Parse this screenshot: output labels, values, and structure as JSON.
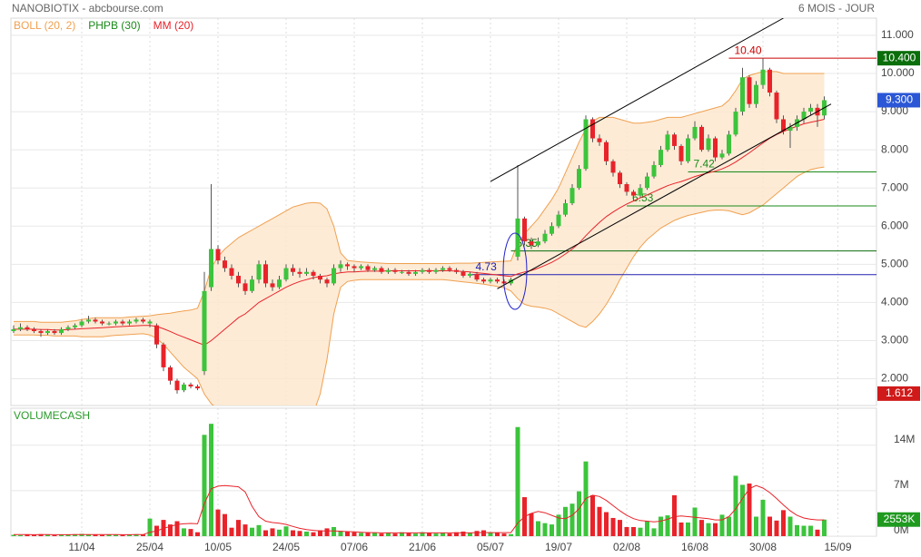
{
  "chart_data": {
    "type": "candlestick",
    "title": "NANOBIOTIX - abcbourse.com",
    "subtitle": "6 MOIS - JOUR",
    "categories": [
      null,
      null,
      null,
      null,
      null,
      null,
      null,
      null,
      null,
      null,
      "11/04",
      null,
      null,
      null,
      null,
      null,
      null,
      null,
      null,
      null,
      "25/04",
      null,
      null,
      null,
      null,
      null,
      null,
      null,
      null,
      null,
      "10/05",
      null,
      null,
      null,
      null,
      null,
      null,
      null,
      null,
      null,
      "24/05",
      null,
      null,
      null,
      null,
      null,
      null,
      null,
      null,
      null,
      "07/06",
      null,
      null,
      null,
      null,
      null,
      null,
      null,
      null,
      null,
      "21/06",
      null,
      null,
      null,
      null,
      null,
      null,
      null,
      null,
      null,
      "05/07",
      null,
      null,
      null,
      null,
      null,
      null,
      null,
      null,
      null,
      "19/07",
      null,
      null,
      null,
      null,
      null,
      null,
      null,
      null,
      null,
      "02/08",
      null,
      null,
      null,
      null,
      null,
      null,
      null,
      null,
      null,
      "16/08",
      null,
      null,
      null,
      null,
      null,
      null,
      null,
      null,
      null,
      "30/08",
      null,
      null,
      null,
      null,
      null,
      null,
      null,
      null,
      null,
      null,
      "15/09"
    ],
    "open": [
      3.25,
      3.3,
      3.35,
      3.3,
      3.25,
      3.2,
      3.25,
      3.2,
      3.3,
      3.35,
      3.4,
      3.5,
      3.55,
      3.5,
      3.45,
      3.45,
      3.5,
      3.45,
      3.5,
      3.55,
      3.45,
      3.4,
      2.9,
      2.3,
      1.95,
      1.7,
      1.85,
      1.8,
      2.2,
      4.4,
      5.4,
      5.1,
      4.9,
      4.7,
      4.5,
      4.3,
      4.6,
      5.0,
      4.5,
      4.4,
      4.6,
      4.9,
      4.8,
      4.75,
      4.8,
      4.7,
      4.6,
      4.5,
      4.9,
      5.0,
      4.95,
      4.9,
      4.95,
      4.85,
      4.9,
      4.8,
      4.85,
      4.8,
      4.8,
      4.75,
      4.8,
      4.85,
      4.8,
      4.85,
      4.9,
      4.85,
      4.8,
      4.7,
      4.75,
      4.6,
      4.55,
      4.6,
      4.55,
      4.5,
      5.2,
      6.2,
      5.6,
      5.5,
      5.6,
      5.8,
      6.0,
      6.3,
      6.6,
      7.0,
      7.5,
      8.8,
      8.3,
      8.2,
      7.7,
      7.4,
      7.1,
      6.9,
      6.8,
      7.0,
      7.3,
      7.6,
      8.0,
      8.4,
      8.1,
      7.7,
      8.3,
      8.6,
      8.0,
      8.3,
      7.8,
      7.9,
      8.4,
      9.0,
      9.9,
      9.2,
      9.7,
      10.1,
      9.5,
      8.8,
      8.5,
      8.6,
      8.8,
      9.0,
      9.1,
      8.9,
      null,
      null
    ],
    "high": [
      3.4,
      3.45,
      3.4,
      3.35,
      3.3,
      3.3,
      3.3,
      3.35,
      3.4,
      3.45,
      3.55,
      3.65,
      3.6,
      3.55,
      3.5,
      3.55,
      3.55,
      3.55,
      3.6,
      3.6,
      3.55,
      3.45,
      2.95,
      2.35,
      2.0,
      1.9,
      1.9,
      1.85,
      4.8,
      7.1,
      5.5,
      5.2,
      5.0,
      4.8,
      4.6,
      4.7,
      5.1,
      5.1,
      4.6,
      4.7,
      5.0,
      5.0,
      4.9,
      4.9,
      4.85,
      4.75,
      4.65,
      5.0,
      5.1,
      5.05,
      5.0,
      5.0,
      5.0,
      4.95,
      4.95,
      4.9,
      4.9,
      4.85,
      4.85,
      4.85,
      4.9,
      4.9,
      4.9,
      4.95,
      4.95,
      4.9,
      4.85,
      4.8,
      4.8,
      4.65,
      4.65,
      4.65,
      4.6,
      4.65,
      7.6,
      6.25,
      5.7,
      5.7,
      5.9,
      6.1,
      6.4,
      6.7,
      7.1,
      7.6,
      8.9,
      8.85,
      8.4,
      8.25,
      7.75,
      7.45,
      7.15,
      6.95,
      7.1,
      7.4,
      7.7,
      8.1,
      8.5,
      8.45,
      8.15,
      8.4,
      8.75,
      8.65,
      8.4,
      8.35,
      8.0,
      8.5,
      9.1,
      10.15,
      9.95,
      9.8,
      10.4,
      10.15,
      9.55,
      8.9,
      8.7,
      8.9,
      9.1,
      9.2,
      9.2,
      9.4,
      null,
      null
    ],
    "low": [
      3.2,
      3.25,
      3.25,
      3.2,
      3.1,
      3.15,
      3.15,
      3.15,
      3.25,
      3.3,
      3.35,
      3.45,
      3.45,
      3.4,
      3.4,
      3.4,
      3.4,
      3.4,
      3.45,
      3.45,
      3.35,
      2.8,
      2.2,
      1.85,
      1.612,
      1.65,
      1.75,
      1.7,
      2.1,
      4.3,
      5.0,
      4.8,
      4.6,
      4.4,
      4.2,
      4.25,
      4.5,
      4.4,
      4.3,
      4.35,
      4.55,
      4.7,
      4.65,
      4.7,
      4.6,
      4.5,
      4.4,
      4.45,
      4.8,
      4.85,
      4.8,
      4.85,
      4.8,
      4.8,
      4.75,
      4.75,
      4.75,
      4.75,
      4.7,
      4.7,
      4.75,
      4.75,
      4.75,
      4.8,
      4.8,
      4.75,
      4.65,
      4.65,
      4.55,
      4.5,
      4.5,
      4.5,
      4.45,
      4.45,
      5.1,
      5.5,
      5.4,
      5.45,
      5.55,
      5.75,
      5.95,
      6.25,
      6.55,
      6.95,
      7.45,
      8.2,
      8.1,
      7.6,
      7.3,
      7.0,
      6.8,
      6.65,
      6.75,
      6.95,
      7.25,
      7.55,
      7.95,
      8.0,
      7.6,
      7.65,
      8.25,
      7.95,
      7.95,
      7.7,
      7.75,
      7.85,
      8.35,
      8.9,
      9.1,
      9.1,
      9.6,
      9.4,
      8.7,
      8.4,
      8.05,
      8.5,
      8.7,
      8.9,
      8.6,
      8.8,
      null,
      null
    ],
    "close": [
      3.3,
      3.35,
      3.3,
      3.25,
      3.2,
      3.25,
      3.2,
      3.3,
      3.35,
      3.4,
      3.5,
      3.55,
      3.5,
      3.45,
      3.45,
      3.5,
      3.45,
      3.5,
      3.55,
      3.5,
      3.5,
      2.9,
      2.3,
      1.95,
      1.7,
      1.85,
      1.8,
      1.75,
      4.3,
      5.4,
      5.1,
      4.9,
      4.7,
      4.5,
      4.3,
      4.6,
      5.0,
      4.5,
      4.4,
      4.6,
      4.9,
      4.8,
      4.75,
      4.8,
      4.7,
      4.6,
      4.5,
      4.9,
      5.0,
      4.95,
      4.9,
      4.95,
      4.85,
      4.9,
      4.8,
      4.85,
      4.8,
      4.8,
      4.75,
      4.8,
      4.85,
      4.8,
      4.85,
      4.9,
      4.85,
      4.8,
      4.7,
      4.75,
      4.6,
      4.55,
      4.6,
      4.55,
      4.5,
      4.6,
      6.2,
      5.6,
      5.5,
      5.6,
      5.8,
      6.0,
      6.3,
      6.6,
      7.0,
      7.5,
      8.8,
      8.3,
      8.2,
      7.7,
      7.4,
      7.1,
      6.9,
      6.8,
      7.0,
      7.3,
      7.6,
      8.0,
      8.4,
      8.1,
      7.7,
      8.3,
      8.6,
      8.0,
      8.3,
      7.8,
      7.9,
      8.4,
      9.0,
      9.9,
      9.2,
      9.7,
      10.1,
      9.5,
      8.8,
      8.5,
      8.6,
      8.8,
      9.0,
      9.1,
      8.9,
      9.3,
      null,
      null
    ],
    "up_color": "#3cc43c",
    "down_color": "#e8232a",
    "bollinger": {
      "name": "BOLL (20, 2)",
      "color": "#f0a050",
      "fill": "#fde6cc",
      "upper": [
        3.5,
        3.5,
        3.5,
        3.5,
        3.48,
        3.48,
        3.48,
        3.48,
        3.5,
        3.52,
        3.55,
        3.58,
        3.6,
        3.6,
        3.6,
        3.6,
        3.6,
        3.62,
        3.63,
        3.64,
        3.65,
        3.68,
        3.7,
        3.72,
        3.75,
        3.78,
        3.8,
        3.85,
        4.3,
        4.9,
        5.2,
        5.4,
        5.55,
        5.7,
        5.8,
        5.9,
        6.0,
        6.1,
        6.2,
        6.3,
        6.4,
        6.5,
        6.55,
        6.6,
        6.62,
        6.6,
        6.45,
        6.0,
        5.3,
        5.1,
        5.08,
        5.06,
        5.05,
        5.04,
        5.03,
        5.02,
        5.02,
        5.02,
        5.02,
        5.02,
        5.02,
        5.02,
        5.02,
        5.02,
        5.02,
        5.03,
        5.03,
        5.03,
        5.04,
        5.05,
        5.06,
        5.07,
        5.08,
        5.09,
        5.55,
        5.8,
        6.0,
        6.2,
        6.45,
        6.7,
        7.0,
        7.4,
        7.8,
        8.2,
        8.55,
        8.75,
        8.85,
        8.85,
        8.85,
        8.8,
        8.75,
        8.7,
        8.7,
        8.72,
        8.75,
        8.8,
        8.85,
        8.85,
        8.85,
        8.9,
        8.95,
        9.0,
        9.05,
        9.1,
        9.15,
        9.3,
        9.55,
        9.85,
        9.95,
        10.0,
        10.05,
        10.05,
        10.05,
        10.0,
        10.0,
        10.0,
        10.0,
        10.0,
        10.0,
        10.0,
        null,
        null
      ],
      "lower": [
        3.15,
        3.15,
        3.15,
        3.15,
        3.14,
        3.14,
        3.12,
        3.12,
        3.12,
        3.12,
        3.1,
        3.1,
        3.1,
        3.1,
        3.12,
        3.14,
        3.15,
        3.16,
        3.17,
        3.18,
        3.15,
        3.06,
        2.9,
        2.7,
        2.5,
        2.3,
        2.15,
        2.0,
        1.6,
        1.35,
        1.2,
        1.1,
        1.0,
        0.95,
        0.9,
        0.85,
        0.8,
        0.75,
        0.7,
        0.7,
        0.7,
        0.72,
        0.8,
        0.9,
        1.1,
        1.6,
        2.5,
        3.7,
        4.4,
        4.55,
        4.58,
        4.6,
        4.6,
        4.6,
        4.6,
        4.6,
        4.6,
        4.6,
        4.6,
        4.6,
        4.6,
        4.6,
        4.6,
        4.6,
        4.58,
        4.56,
        4.54,
        4.52,
        4.5,
        4.48,
        4.45,
        4.42,
        4.38,
        4.3,
        4.1,
        3.95,
        3.9,
        3.88,
        3.85,
        3.8,
        3.7,
        3.6,
        3.5,
        3.4,
        3.35,
        3.5,
        3.7,
        3.95,
        4.25,
        4.6,
        4.9,
        5.2,
        5.45,
        5.65,
        5.8,
        5.95,
        6.05,
        6.15,
        6.22,
        6.28,
        6.32,
        6.36,
        6.4,
        6.42,
        6.42,
        6.4,
        6.35,
        6.3,
        6.35,
        6.45,
        6.55,
        6.7,
        6.85,
        7.0,
        7.15,
        7.3,
        7.4,
        7.48,
        7.52,
        7.55,
        null,
        null
      ]
    },
    "phpb": {
      "name": "PHPB (30)",
      "color": "#1a8a1a"
    },
    "moving_average": {
      "name": "MM (20)",
      "color": "#e8232a",
      "values": [
        3.3,
        3.3,
        3.3,
        3.3,
        3.29,
        3.29,
        3.28,
        3.28,
        3.29,
        3.3,
        3.31,
        3.32,
        3.33,
        3.34,
        3.35,
        3.36,
        3.37,
        3.38,
        3.39,
        3.4,
        3.4,
        3.37,
        3.31,
        3.24,
        3.16,
        3.09,
        3.02,
        2.95,
        2.88,
        3.0,
        3.15,
        3.3,
        3.45,
        3.6,
        3.7,
        3.85,
        4.0,
        4.1,
        4.2,
        4.3,
        4.4,
        4.48,
        4.55,
        4.6,
        4.65,
        4.68,
        4.7,
        4.75,
        4.78,
        4.8,
        4.8,
        4.81,
        4.82,
        4.82,
        4.82,
        4.83,
        4.83,
        4.83,
        4.83,
        4.83,
        4.83,
        4.83,
        4.83,
        4.83,
        4.83,
        4.82,
        4.81,
        4.8,
        4.78,
        4.76,
        4.74,
        4.72,
        4.7,
        4.68,
        4.75,
        4.8,
        4.84,
        4.9,
        4.97,
        5.05,
        5.15,
        5.27,
        5.4,
        5.55,
        5.75,
        5.93,
        6.1,
        6.25,
        6.37,
        6.48,
        6.58,
        6.66,
        6.74,
        6.82,
        6.9,
        6.98,
        7.06,
        7.12,
        7.17,
        7.23,
        7.3,
        7.35,
        7.4,
        7.44,
        7.5,
        7.58,
        7.68,
        7.8,
        7.92,
        8.05,
        8.18,
        8.3,
        8.4,
        8.48,
        8.55,
        8.62,
        8.68,
        8.72,
        8.76,
        8.8,
        null,
        null
      ]
    },
    "levels": [
      {
        "value": 10.4,
        "label": "10.40",
        "color": "#cc0000",
        "start": 105
      },
      {
        "value": 7.42,
        "label": "7.42",
        "color": "#1a8a1a",
        "start": 99
      },
      {
        "value": 6.53,
        "label": "6.53",
        "color": "#1a8a1a",
        "start": 90
      },
      {
        "value": 5.35,
        "label": "5.35",
        "color": "#0a6a0a",
        "start": 73
      },
      {
        "value": 4.73,
        "label": "4.73",
        "color": "#2020b0",
        "start": 67
      }
    ],
    "trendlines": [
      {
        "x": [
          70,
          113
        ],
        "y": [
          7.17,
          11.45
        ],
        "color": "#000000"
      },
      {
        "x": [
          71,
          120
        ],
        "y": [
          4.36,
          9.2
        ],
        "color": "#000000"
      }
    ],
    "price_labels": [
      {
        "value": 10.4,
        "label": "10.400",
        "color": "#0a6e0a"
      },
      {
        "value": 9.3,
        "label": "9.300",
        "color": "#2b57d6"
      },
      {
        "value": 1.612,
        "label": "1.612",
        "color": "#d01a1a"
      }
    ],
    "ylim": [
      1.3,
      11.45
    ],
    "yticks": [
      {
        "value": 2,
        "label": "2.000"
      },
      {
        "value": 3,
        "label": "3.000"
      },
      {
        "value": 4,
        "label": "4.000"
      },
      {
        "value": 5,
        "label": "5.000"
      },
      {
        "value": 6,
        "label": "6.000"
      },
      {
        "value": 7,
        "label": "7.000"
      },
      {
        "value": 8,
        "label": "8.000"
      },
      {
        "value": 9,
        "label": "9.000"
      },
      {
        "value": 10,
        "label": "10.000"
      },
      {
        "value": 11,
        "label": "11.000"
      }
    ],
    "grid": true,
    "volume": {
      "name": "VOLUMECASH",
      "color": "#2a9a2a",
      "values": [
        200000,
        150000,
        250000,
        180000,
        300000,
        200000,
        150000,
        220000,
        250000,
        300000,
        350000,
        280000,
        200000,
        180000,
        250000,
        200000,
        180000,
        220000,
        300000,
        250000,
        2700000,
        1600000,
        2500000,
        1800000,
        2300000,
        1200000,
        1100000,
        600000,
        15600000,
        17300000,
        4100000,
        3400000,
        1300000,
        2500000,
        1800000,
        1300000,
        1700000,
        900000,
        1200000,
        1000000,
        1500000,
        900000,
        800000,
        700000,
        600000,
        900000,
        1200000,
        1400000,
        800000,
        700000,
        600000,
        500000,
        600000,
        500000,
        400000,
        500000,
        400000,
        600000,
        500000,
        400000,
        600000,
        500000,
        400000,
        500000,
        400000,
        600000,
        700000,
        500000,
        800000,
        900000,
        600000,
        500000,
        400000,
        300000,
        16800000,
        6000000,
        3500000,
        2300000,
        2000000,
        1800000,
        3300000,
        4500000,
        5000000,
        6900000,
        11500000,
        6300000,
        4500000,
        3700000,
        2800000,
        2500000,
        1400000,
        1400000,
        1300000,
        2300000,
        1200000,
        3000000,
        3200000,
        6300000,
        2100000,
        2100000,
        4400000,
        2500000,
        2000000,
        2000000,
        3300000,
        3000000,
        9300000,
        7900000,
        8100000,
        3000000,
        5600000,
        3000000,
        2400000,
        4000000,
        3000000,
        1700000,
        1600000,
        1600000,
        1000000,
        2553000,
        null,
        null
      ],
      "ma": [
        250000,
        240000,
        240000,
        230000,
        240000,
        240000,
        230000,
        230000,
        230000,
        240000,
        250000,
        250000,
        250000,
        240000,
        240000,
        240000,
        230000,
        230000,
        240000,
        240000,
        600000,
        800000,
        1200000,
        1500000,
        1800000,
        1900000,
        1950000,
        1900000,
        5000000,
        7300000,
        7700000,
        7800000,
        7700000,
        7600000,
        6800000,
        4600000,
        3000000,
        2300000,
        2100000,
        2000000,
        1800000,
        1500000,
        1200000,
        1000000,
        900000,
        800000,
        800000,
        800000,
        750000,
        700000,
        650000,
        600000,
        550000,
        550000,
        500000,
        500000,
        500000,
        500000,
        500000,
        500000,
        500000,
        500000,
        500000,
        500000,
        500000,
        500000,
        500000,
        500000,
        550000,
        550000,
        550000,
        550000,
        550000,
        550000,
        2000000,
        3000000,
        3500000,
        3800000,
        3600000,
        3200000,
        2800000,
        2700000,
        3200000,
        4200000,
        5800000,
        6300000,
        6100000,
        5500000,
        4700000,
        3900000,
        3200000,
        2700000,
        2400000,
        2300000,
        2200000,
        2300000,
        2600000,
        3000000,
        3100000,
        3000000,
        2900000,
        2800000,
        2700000,
        2500000,
        2500000,
        3000000,
        4200000,
        5800000,
        7300000,
        7800000,
        7400000,
        6700000,
        5800000,
        4800000,
        3900000,
        3200000,
        2800000,
        2600000,
        2500000,
        2500000,
        null,
        null
      ],
      "ma_color": "#e8232a",
      "ylim": [
        0,
        19700000
      ],
      "yticks": [
        {
          "value": 0,
          "label": "0M"
        },
        {
          "value": 7000000,
          "label": "7M"
        },
        {
          "value": 14000000,
          "label": "14M"
        }
      ],
      "last_label": {
        "value": 2553000,
        "label": "2553K",
        "color": "#1f9a1f"
      }
    }
  }
}
